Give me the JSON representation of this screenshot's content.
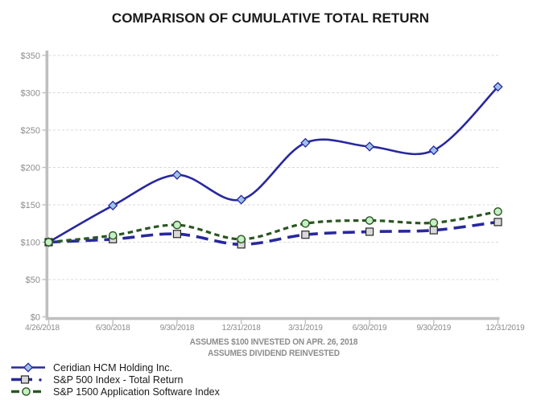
{
  "title": "COMPARISON OF CUMULATIVE TOTAL RETURN",
  "chart_data": {
    "type": "line",
    "title": "COMPARISON OF CUMULATIVE TOTAL RETURN",
    "categories": [
      "4/26/2018",
      "6/30/2018",
      "9/30/2018",
      "12/31/2018",
      "3/31/2019",
      "6/30/2019",
      "9/30/2019",
      "12/31/2019"
    ],
    "series": [
      {
        "name": "Ceridian HCM Holding Inc.",
        "values": [
          100,
          149,
          190,
          157,
          233,
          228,
          223,
          308
        ],
        "line_color": "#28289E",
        "line_style": "solid",
        "marker": "diamond",
        "marker_fill": "#9DC3E6",
        "marker_stroke": "#28289E"
      },
      {
        "name": "S&P 500 Index - Total Return",
        "values": [
          100,
          104,
          111,
          97,
          110,
          114,
          116,
          127
        ],
        "line_color": "#28289E",
        "line_style": "long-dash",
        "marker": "square",
        "marker_fill": "#D9D9D9",
        "marker_stroke": "#262626"
      },
      {
        "name": "S&P 1500 Application Software Index",
        "values": [
          100,
          109,
          123,
          104,
          125,
          129,
          126,
          141
        ],
        "line_color": "#2A5621",
        "line_style": "dash",
        "marker": "circle",
        "marker_fill": "#C6EFC6",
        "marker_stroke": "#2A5621"
      }
    ],
    "xlabel": "",
    "ylabel": "",
    "ylim": [
      0,
      350
    ],
    "ytick_step": 50,
    "ytick_labels": [
      "$0",
      "$50",
      "$100",
      "$150",
      "$200",
      "$250",
      "$300",
      "$350"
    ],
    "grid": "horizontal-dashed",
    "smoothed": true,
    "legend_position": "bottom-left",
    "axis_color": "#BFBFBF",
    "grid_color": "#D9D9D9",
    "tick_label_color": "#8C8C8C"
  },
  "captions": [
    "ASSUMES $100 INVESTED ON APR. 26, 2018",
    "ASSUMES DIVIDEND REINVESTED"
  ]
}
